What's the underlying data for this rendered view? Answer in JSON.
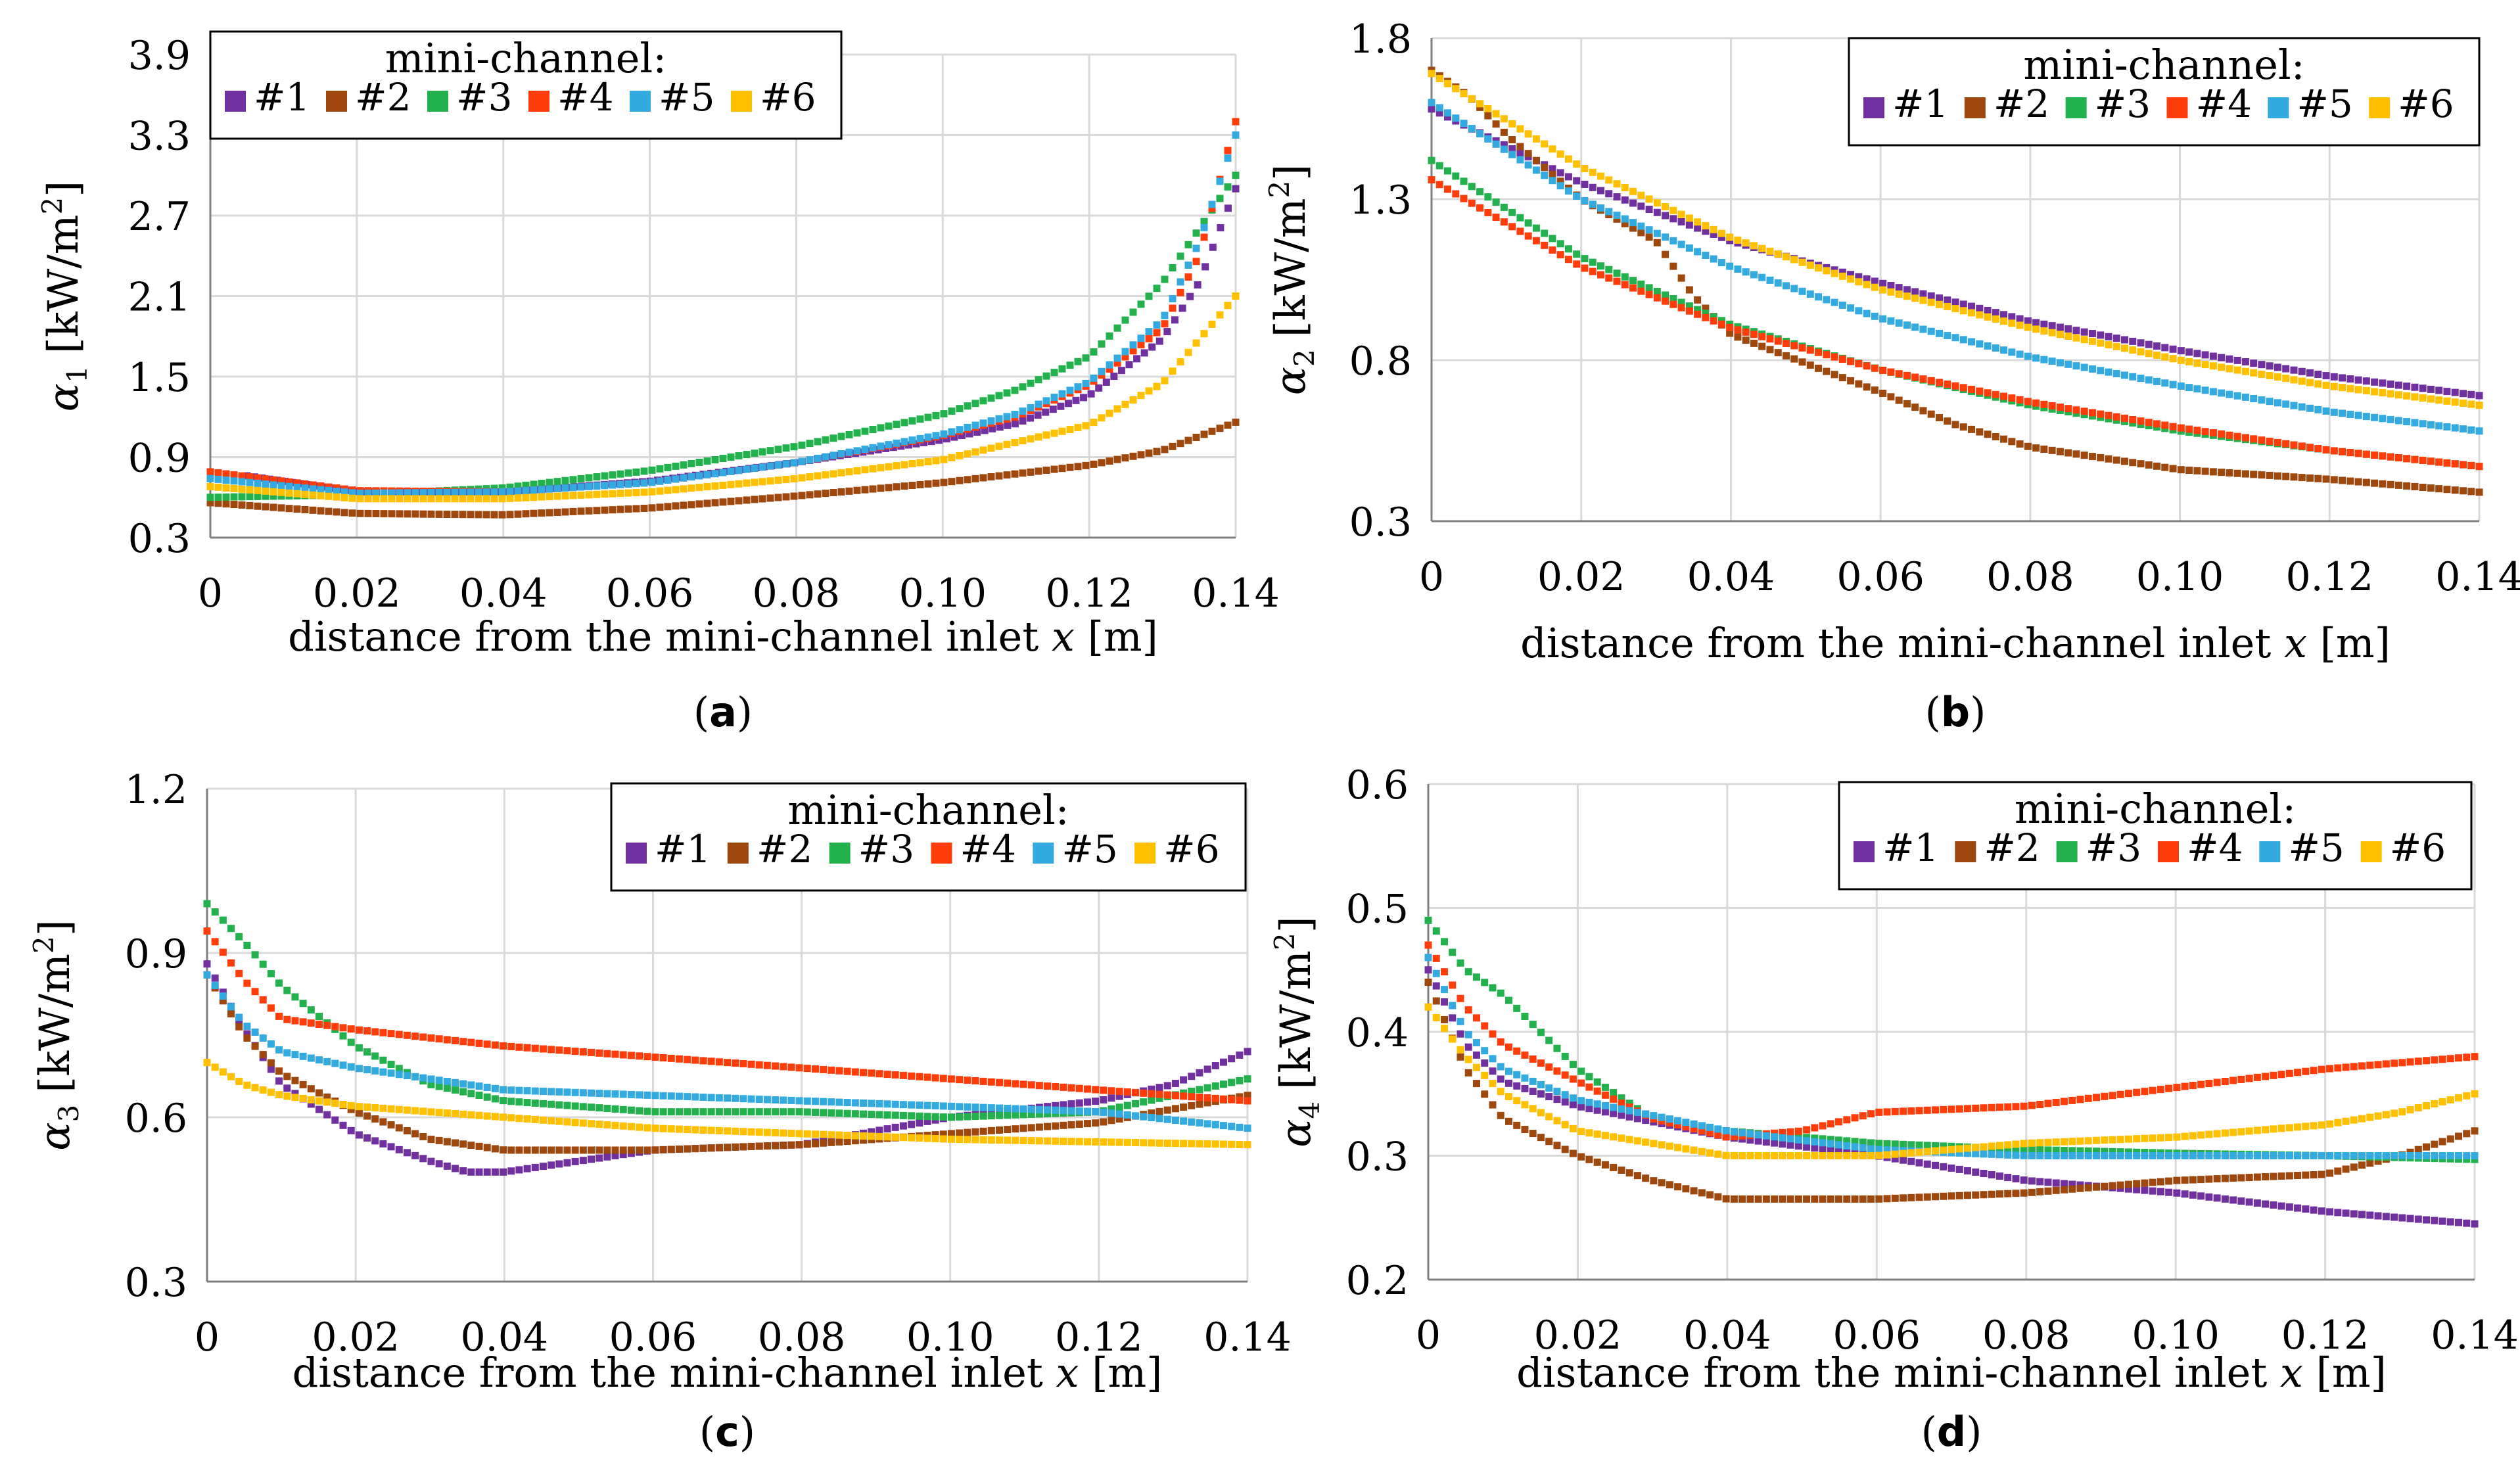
{
  "series_colors": {
    "#1": "#7030A0",
    "#2": "#9E480E",
    "#3": "#22B14C",
    "#4": "#FF3D0A",
    "#5": "#33AAE0",
    "#6": "#FFC000"
  },
  "chart_data": [
    {
      "id": "a",
      "type": "scatter",
      "panel_label": "a",
      "title": "",
      "xlabel": "distance from the mini-channel inlet",
      "xlabel_var": "x",
      "xlabel_unit": "[m]",
      "ylabel_symbol": "α",
      "ylabel_sub": "1",
      "ylabel_unit": "[kW/m",
      "ylabel_sup": "2",
      "ylabel_close": "]",
      "xlim": [
        0,
        0.14
      ],
      "ylim": [
        0.3,
        3.9
      ],
      "xticks": [
        0,
        0.02,
        0.04,
        0.06,
        0.08,
        0.1,
        0.12,
        0.14
      ],
      "xtick_labels": [
        "0",
        "0.02",
        "0.04",
        "0.06",
        "0.08",
        "0.10",
        "0.12",
        "0.14"
      ],
      "yticks": [
        0.3,
        0.9,
        1.5,
        2.1,
        2.7,
        3.3,
        3.9
      ],
      "ytick_labels": [
        "0.3",
        "0.9",
        "1.5",
        "2.1",
        "2.7",
        "3.3",
        "3.9"
      ],
      "legend_title": "mini-channel:",
      "legend_position": "top-left",
      "grid": true,
      "series": [
        {
          "name": "#1",
          "x": [
            0.005,
            0.02,
            0.04,
            0.06,
            0.08,
            0.1,
            0.11,
            0.12,
            0.13,
            0.135,
            0.14
          ],
          "values": [
            0.76,
            0.64,
            0.64,
            0.72,
            0.86,
            1.03,
            1.15,
            1.36,
            1.78,
            2.2,
            2.9
          ]
        },
        {
          "name": "#2",
          "x": [
            0,
            0.02,
            0.04,
            0.06,
            0.08,
            0.1,
            0.12,
            0.13,
            0.14
          ],
          "values": [
            0.56,
            0.48,
            0.47,
            0.52,
            0.61,
            0.71,
            0.84,
            0.95,
            1.16
          ]
        },
        {
          "name": "#3",
          "x": [
            0,
            0.02,
            0.04,
            0.06,
            0.08,
            0.1,
            0.11,
            0.12,
            0.13,
            0.14
          ],
          "values": [
            0.6,
            0.62,
            0.67,
            0.8,
            0.98,
            1.22,
            1.4,
            1.65,
            2.2,
            3.0
          ]
        },
        {
          "name": "#4",
          "x": [
            0,
            0.02,
            0.04,
            0.06,
            0.08,
            0.1,
            0.11,
            0.12,
            0.13,
            0.135,
            0.14
          ],
          "values": [
            0.79,
            0.65,
            0.64,
            0.71,
            0.86,
            1.06,
            1.2,
            1.44,
            1.86,
            2.4,
            3.4
          ]
        },
        {
          "name": "#5",
          "x": [
            0,
            0.02,
            0.04,
            0.06,
            0.08,
            0.1,
            0.11,
            0.12,
            0.13,
            0.135,
            0.14
          ],
          "values": [
            0.74,
            0.63,
            0.64,
            0.71,
            0.86,
            1.07,
            1.22,
            1.46,
            1.92,
            2.5,
            3.3
          ]
        },
        {
          "name": "#6",
          "x": [
            0,
            0.02,
            0.04,
            0.06,
            0.08,
            0.1,
            0.12,
            0.13,
            0.14
          ],
          "values": [
            0.68,
            0.59,
            0.59,
            0.64,
            0.74,
            0.88,
            1.14,
            1.45,
            2.1
          ]
        }
      ]
    },
    {
      "id": "b",
      "type": "scatter",
      "panel_label": "b",
      "title": "",
      "xlabel": "distance from the mini-channel inlet",
      "xlabel_var": "x",
      "xlabel_unit": "[m]",
      "ylabel_symbol": "α",
      "ylabel_sub": "2",
      "ylabel_unit": "[kW/m",
      "ylabel_sup": "2",
      "ylabel_close": "]",
      "xlim": [
        0,
        0.14
      ],
      "ylim": [
        0.3,
        1.8
      ],
      "xticks": [
        0,
        0.02,
        0.04,
        0.06,
        0.08,
        0.1,
        0.12,
        0.14
      ],
      "xtick_labels": [
        "0",
        "0.02",
        "0.04",
        "0.06",
        "0.08",
        "0.10",
        "0.12",
        "0.14"
      ],
      "yticks": [
        0.3,
        0.8,
        1.3,
        1.8
      ],
      "ytick_labels": [
        "0.3",
        "0.8",
        "1.3",
        "1.8"
      ],
      "legend_title": "mini-channel:",
      "legend_position": "top-right",
      "grid": true,
      "series": [
        {
          "name": "#1",
          "x": [
            0,
            0.02,
            0.04,
            0.06,
            0.08,
            0.1,
            0.12,
            0.14
          ],
          "values": [
            1.58,
            1.35,
            1.17,
            1.04,
            0.92,
            0.83,
            0.75,
            0.69
          ]
        },
        {
          "name": "#2",
          "x": [
            0,
            0.005,
            0.01,
            0.02,
            0.03,
            0.035,
            0.04,
            0.05,
            0.06,
            0.07,
            0.08,
            0.1,
            0.12,
            0.14
          ],
          "values": [
            1.7,
            1.62,
            1.5,
            1.3,
            1.17,
            1.0,
            0.88,
            0.79,
            0.7,
            0.6,
            0.53,
            0.46,
            0.43,
            0.39
          ]
        },
        {
          "name": "#3",
          "x": [
            0,
            0.02,
            0.04,
            0.06,
            0.08,
            0.1,
            0.12,
            0.14
          ],
          "values": [
            1.42,
            1.12,
            0.91,
            0.77,
            0.66,
            0.58,
            0.52,
            0.47
          ]
        },
        {
          "name": "#4",
          "x": [
            0,
            0.02,
            0.04,
            0.06,
            0.08,
            0.1,
            0.12,
            0.14
          ],
          "values": [
            1.36,
            1.09,
            0.9,
            0.77,
            0.67,
            0.59,
            0.52,
            0.47
          ]
        },
        {
          "name": "#5",
          "x": [
            0,
            0.02,
            0.04,
            0.06,
            0.08,
            0.1,
            0.12,
            0.14
          ],
          "values": [
            1.6,
            1.3,
            1.09,
            0.93,
            0.81,
            0.72,
            0.64,
            0.58
          ]
        },
        {
          "name": "#6",
          "x": [
            0,
            0.02,
            0.04,
            0.06,
            0.08,
            0.1,
            0.12,
            0.14
          ],
          "values": [
            1.69,
            1.4,
            1.18,
            1.02,
            0.9,
            0.8,
            0.72,
            0.66
          ]
        }
      ]
    },
    {
      "id": "c",
      "type": "scatter",
      "panel_label": "c",
      "title": "",
      "xlabel": "distance from the mini-channel inlet",
      "xlabel_var": "x",
      "xlabel_unit": "[m]",
      "ylabel_symbol": "α",
      "ylabel_sub": "3",
      "ylabel_unit": "[kW/m",
      "ylabel_sup": "2",
      "ylabel_close": "]",
      "xlim": [
        0,
        0.14
      ],
      "ylim": [
        0.3,
        1.2
      ],
      "xticks": [
        0,
        0.02,
        0.04,
        0.06,
        0.08,
        0.1,
        0.12,
        0.14
      ],
      "xtick_labels": [
        "0",
        "0.02",
        "0.04",
        "0.06",
        "0.08",
        "0.10",
        "0.12",
        "0.14"
      ],
      "yticks": [
        0.3,
        0.6,
        0.9,
        1.2
      ],
      "ytick_labels": [
        "0.3",
        "0.6",
        "0.9",
        "1.2"
      ],
      "legend_title": "mini-channel:",
      "legend_position": "top-right",
      "grid": true,
      "series": [
        {
          "name": "#1",
          "x": [
            0,
            0.005,
            0.01,
            0.02,
            0.03,
            0.035,
            0.04,
            0.05,
            0.06,
            0.08,
            0.1,
            0.12,
            0.13,
            0.14
          ],
          "values": [
            0.88,
            0.76,
            0.66,
            0.57,
            0.52,
            0.5,
            0.5,
            0.52,
            0.54,
            0.55,
            0.6,
            0.63,
            0.66,
            0.72
          ]
        },
        {
          "name": "#2",
          "x": [
            0,
            0.005,
            0.01,
            0.02,
            0.03,
            0.04,
            0.06,
            0.08,
            0.1,
            0.12,
            0.14
          ],
          "values": [
            0.86,
            0.75,
            0.68,
            0.61,
            0.56,
            0.54,
            0.54,
            0.55,
            0.57,
            0.59,
            0.64
          ]
        },
        {
          "name": "#3",
          "x": [
            0,
            0.005,
            0.01,
            0.02,
            0.03,
            0.04,
            0.06,
            0.08,
            0.1,
            0.12,
            0.14
          ],
          "values": [
            0.99,
            0.92,
            0.84,
            0.73,
            0.66,
            0.63,
            0.61,
            0.61,
            0.6,
            0.61,
            0.67
          ]
        },
        {
          "name": "#4",
          "x": [
            0,
            0.005,
            0.01,
            0.02,
            0.04,
            0.06,
            0.08,
            0.1,
            0.12,
            0.14
          ],
          "values": [
            0.94,
            0.85,
            0.78,
            0.76,
            0.73,
            0.71,
            0.69,
            0.67,
            0.65,
            0.63
          ]
        },
        {
          "name": "#5",
          "x": [
            0,
            0.005,
            0.01,
            0.02,
            0.04,
            0.06,
            0.08,
            0.1,
            0.12,
            0.14
          ],
          "values": [
            0.86,
            0.77,
            0.72,
            0.69,
            0.65,
            0.64,
            0.63,
            0.62,
            0.61,
            0.58
          ]
        },
        {
          "name": "#6",
          "x": [
            0,
            0.005,
            0.01,
            0.02,
            0.04,
            0.06,
            0.08,
            0.1,
            0.12,
            0.14
          ],
          "values": [
            0.7,
            0.66,
            0.64,
            0.62,
            0.6,
            0.58,
            0.57,
            0.56,
            0.555,
            0.55
          ]
        }
      ]
    },
    {
      "id": "d",
      "type": "scatter",
      "panel_label": "d",
      "title": "",
      "xlabel": "distance from the mini-channel inlet",
      "xlabel_var": "x",
      "xlabel_unit": "[m]",
      "ylabel_symbol": "α",
      "ylabel_sub": "4",
      "ylabel_unit": "[kW/m",
      "ylabel_sup": "2",
      "ylabel_close": "]",
      "xlim": [
        0,
        0.14
      ],
      "ylim": [
        0.2,
        0.6
      ],
      "xticks": [
        0,
        0.02,
        0.04,
        0.06,
        0.08,
        0.1,
        0.12,
        0.14
      ],
      "xtick_labels": [
        "0",
        "0.02",
        "0.04",
        "0.06",
        "0.08",
        "0.10",
        "0.12",
        "0.14"
      ],
      "yticks": [
        0.2,
        0.3,
        0.4,
        0.5,
        0.6
      ],
      "ytick_labels": [
        "0.2",
        "0.3",
        "0.4",
        "0.5",
        "0.6"
      ],
      "legend_title": "mini-channel:",
      "legend_position": "top-right",
      "grid": true,
      "series": [
        {
          "name": "#1",
          "x": [
            0,
            0.005,
            0.01,
            0.02,
            0.04,
            0.06,
            0.08,
            0.1,
            0.12,
            0.14
          ],
          "values": [
            0.45,
            0.39,
            0.36,
            0.34,
            0.315,
            0.3,
            0.28,
            0.27,
            0.255,
            0.245
          ]
        },
        {
          "name": "#2",
          "x": [
            0,
            0.005,
            0.01,
            0.02,
            0.03,
            0.04,
            0.06,
            0.08,
            0.1,
            0.12,
            0.13,
            0.14
          ],
          "values": [
            0.44,
            0.37,
            0.33,
            0.3,
            0.28,
            0.265,
            0.265,
            0.27,
            0.28,
            0.285,
            0.3,
            0.32
          ]
        },
        {
          "name": "#3",
          "x": [
            0,
            0.005,
            0.01,
            0.02,
            0.03,
            0.04,
            0.06,
            0.08,
            0.1,
            0.12,
            0.14
          ],
          "values": [
            0.49,
            0.45,
            0.43,
            0.37,
            0.33,
            0.32,
            0.31,
            0.305,
            0.302,
            0.3,
            0.297
          ]
        },
        {
          "name": "#4",
          "x": [
            0,
            0.005,
            0.01,
            0.02,
            0.03,
            0.04,
            0.05,
            0.06,
            0.08,
            0.1,
            0.12,
            0.14
          ],
          "values": [
            0.47,
            0.42,
            0.39,
            0.36,
            0.33,
            0.315,
            0.32,
            0.335,
            0.34,
            0.355,
            0.37,
            0.38
          ]
        },
        {
          "name": "#5",
          "x": [
            0,
            0.005,
            0.01,
            0.02,
            0.04,
            0.06,
            0.08,
            0.1,
            0.12,
            0.14
          ],
          "values": [
            0.46,
            0.4,
            0.37,
            0.345,
            0.32,
            0.305,
            0.3,
            0.3,
            0.3,
            0.3
          ]
        },
        {
          "name": "#6",
          "x": [
            0,
            0.005,
            0.01,
            0.02,
            0.03,
            0.04,
            0.06,
            0.08,
            0.1,
            0.12,
            0.13,
            0.14
          ],
          "values": [
            0.42,
            0.38,
            0.35,
            0.32,
            0.31,
            0.3,
            0.3,
            0.31,
            0.315,
            0.325,
            0.335,
            0.35
          ]
        }
      ]
    }
  ]
}
